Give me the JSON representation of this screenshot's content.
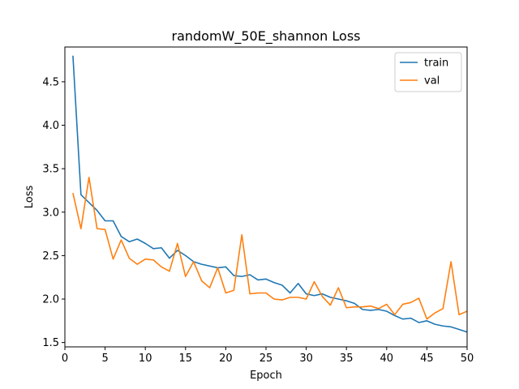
{
  "chart_data": {
    "type": "line",
    "title": "randomW_50E_shannon Loss",
    "xlabel": "Epoch",
    "ylabel": "Loss",
    "xlim": [
      0,
      50
    ],
    "ylim": [
      1.45,
      4.9
    ],
    "xticks": [
      0,
      5,
      10,
      15,
      20,
      25,
      30,
      35,
      40,
      45,
      50
    ],
    "yticks": [
      1.5,
      2.0,
      2.5,
      3.0,
      3.5,
      4.0,
      4.5
    ],
    "ytick_labels": [
      "1.5",
      "2.0",
      "2.5",
      "3.0",
      "3.5",
      "4.0",
      "4.5"
    ],
    "grid": false,
    "legend_position": "top-right",
    "x": [
      1,
      2,
      3,
      4,
      5,
      6,
      7,
      8,
      9,
      10,
      11,
      12,
      13,
      14,
      15,
      16,
      17,
      18,
      19,
      20,
      21,
      22,
      23,
      24,
      25,
      26,
      27,
      28,
      29,
      30,
      31,
      32,
      33,
      34,
      35,
      36,
      37,
      38,
      39,
      40,
      41,
      42,
      43,
      44,
      45,
      46,
      47,
      48,
      49,
      50
    ],
    "series": [
      {
        "name": "train",
        "color": "#1f77b4",
        "values": [
          4.8,
          3.2,
          3.11,
          3.02,
          2.9,
          2.9,
          2.72,
          2.66,
          2.69,
          2.64,
          2.58,
          2.59,
          2.47,
          2.56,
          2.5,
          2.43,
          2.4,
          2.38,
          2.36,
          2.37,
          2.27,
          2.26,
          2.28,
          2.22,
          2.23,
          2.19,
          2.16,
          2.07,
          2.18,
          2.06,
          2.04,
          2.06,
          2.02,
          2.0,
          1.98,
          1.95,
          1.88,
          1.87,
          1.88,
          1.86,
          1.81,
          1.77,
          1.78,
          1.73,
          1.75,
          1.71,
          1.69,
          1.68,
          1.65,
          1.62
        ]
      },
      {
        "name": "val",
        "color": "#ff7f0e",
        "values": [
          3.22,
          2.81,
          3.4,
          2.81,
          2.8,
          2.46,
          2.68,
          2.47,
          2.4,
          2.46,
          2.45,
          2.37,
          2.32,
          2.64,
          2.26,
          2.43,
          2.21,
          2.13,
          2.36,
          2.07,
          2.1,
          2.74,
          2.06,
          2.07,
          2.07,
          2.0,
          1.99,
          2.02,
          2.02,
          2.0,
          2.2,
          2.03,
          1.93,
          2.13,
          1.9,
          1.91,
          1.91,
          1.92,
          1.89,
          1.94,
          1.82,
          1.94,
          1.96,
          2.01,
          1.77,
          1.84,
          1.89,
          2.43,
          1.82,
          1.86
        ]
      }
    ]
  }
}
